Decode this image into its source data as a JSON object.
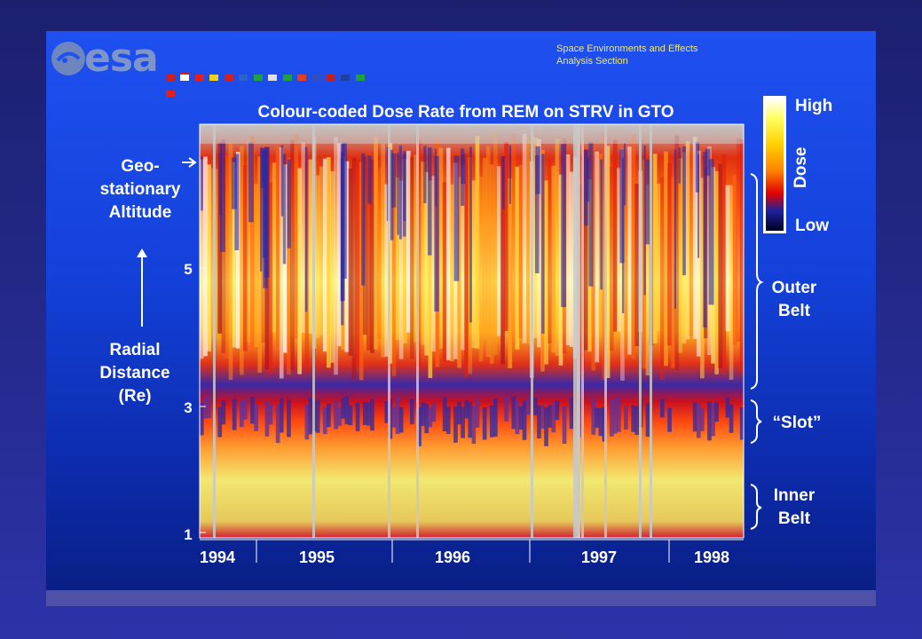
{
  "header": {
    "logo_text": "esa",
    "org_line1": "Space Environments and Effects",
    "org_line2": "Analysis Section"
  },
  "chart_data": {
    "type": "heatmap",
    "title": "Colour-coded Dose Rate from REM on STRV in GTO",
    "x_tick_labels": [
      "1994",
      "1995",
      "1996",
      "1997",
      "1998"
    ],
    "y_tick_labels": [
      "1",
      "3",
      "5"
    ],
    "y_axis_label": {
      "line1": "Radial",
      "line2": "Distance",
      "line3": "(Re)"
    },
    "geo_label": {
      "line1": "Geo-",
      "line2": "stationary",
      "line3": "Altitude"
    },
    "colorbar": {
      "high_label": "High",
      "low_label": "Low",
      "title": "Dose",
      "colors": [
        "#ffffff",
        "#ffff60",
        "#ffd000",
        "#ff8000",
        "#e00000",
        "#1e20a0",
        "#000020"
      ]
    },
    "regions": [
      {
        "line1": "Outer",
        "line2": "Belt"
      },
      {
        "line1": "“Slot”",
        "line2": ""
      },
      {
        "line1": "Inner",
        "line2": "Belt"
      }
    ]
  }
}
